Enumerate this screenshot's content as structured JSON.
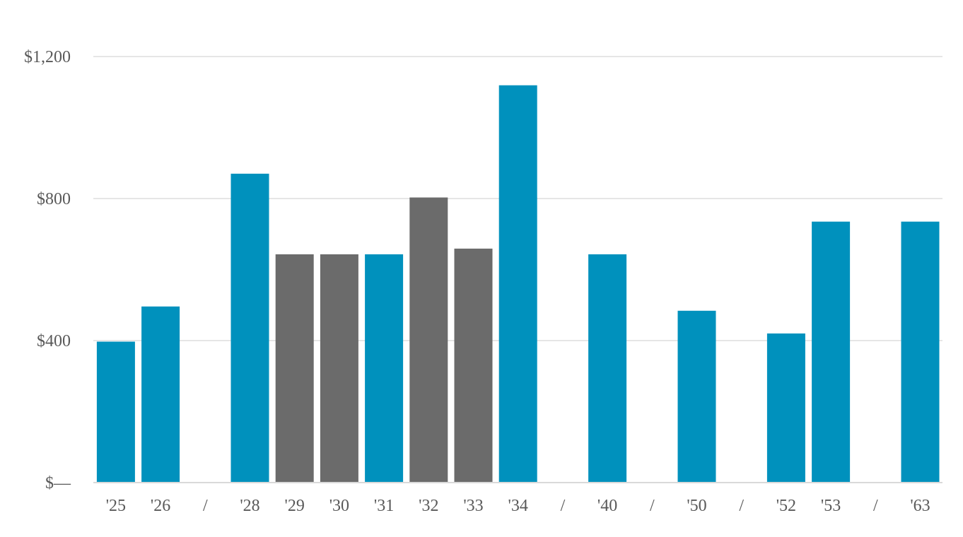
{
  "chart_data": {
    "type": "bar",
    "title": "",
    "xlabel": "",
    "ylabel": "",
    "ylim": [
      0,
      1200
    ],
    "y_ticks": [
      {
        "value": 0,
        "label": "$—"
      },
      {
        "value": 400,
        "label": "$400"
      },
      {
        "value": 800,
        "label": "$800"
      },
      {
        "value": 1200,
        "label": "$1,200"
      }
    ],
    "grid": true,
    "legend": "none",
    "colors": {
      "primary": "#0091BD",
      "secondary": "#6B6B6B",
      "grid": "#E6E6E6",
      "axis": "#D9D9D9",
      "label": "#595959"
    },
    "categories": [
      "'25",
      "'26",
      "/",
      "'28",
      "'29",
      "'30",
      "'31",
      "'32",
      "'33",
      "'34",
      "/",
      "'40",
      "/",
      "'50",
      "/",
      "'52",
      "'53",
      "/",
      "'63"
    ],
    "values": [
      397,
      496,
      null,
      870,
      643,
      643,
      643,
      803,
      659,
      1119,
      null,
      643,
      null,
      484,
      null,
      420,
      735,
      null,
      735
    ],
    "bar_colors": [
      "primary",
      "primary",
      null,
      "primary",
      "secondary",
      "secondary",
      "primary",
      "secondary",
      "secondary",
      "primary",
      null,
      "primary",
      null,
      "primary",
      null,
      "primary",
      "primary",
      null,
      "primary"
    ]
  }
}
